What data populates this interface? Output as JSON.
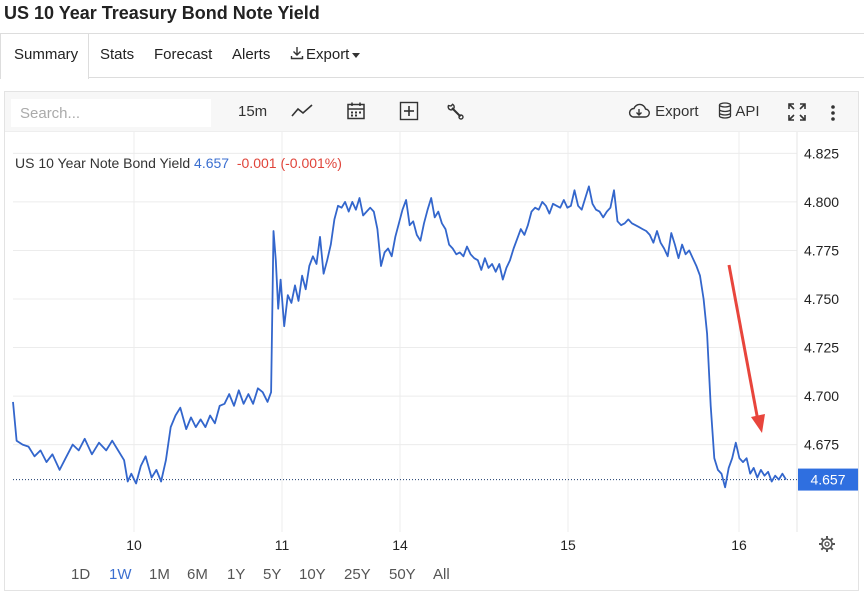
{
  "title": "US 10 Year Treasury Bond Note Yield",
  "tabs": [
    {
      "label": "Summary",
      "active": true
    },
    {
      "label": "Stats",
      "active": false
    },
    {
      "label": "Forecast",
      "active": false
    },
    {
      "label": "Alerts",
      "active": false
    },
    {
      "label": "Export",
      "active": false
    }
  ],
  "toolbar": {
    "search_placeholder": "Search...",
    "interval": "15m",
    "export_label": "Export",
    "api_label": "API"
  },
  "legend": {
    "name": "US 10 Year Note Bond Yield",
    "value": "4.657",
    "change": "-0.001 (-0.001%)"
  },
  "last_value_label": "4.657",
  "range_buttons": [
    {
      "label": "1D",
      "active": false
    },
    {
      "label": "1W",
      "active": true
    },
    {
      "label": "1M",
      "active": false
    },
    {
      "label": "6M",
      "active": false
    },
    {
      "label": "1Y",
      "active": false
    },
    {
      "label": "5Y",
      "active": false
    },
    {
      "label": "10Y",
      "active": false
    },
    {
      "label": "25Y",
      "active": false
    },
    {
      "label": "50Y",
      "active": false
    },
    {
      "label": "All",
      "active": false
    }
  ],
  "colors": {
    "line": "#3366cc",
    "up": "#3b6fd0",
    "down": "#e0443a",
    "arrow": "#e8453c",
    "last_label_bg": "#2f6fe0"
  },
  "chart_data": {
    "type": "line",
    "series": [
      {
        "name": "US 10 Year Note Bond Yield",
        "x_ticks": [
          "10",
          "11",
          "14",
          "15",
          "16"
        ],
        "points": [
          [
            0.0,
            4.697
          ],
          [
            0.3,
            4.677
          ],
          [
            0.8,
            4.675
          ],
          [
            1.3,
            4.674
          ],
          [
            1.8,
            4.669
          ],
          [
            2.3,
            4.672
          ],
          [
            2.8,
            4.666
          ],
          [
            3.3,
            4.67
          ],
          [
            3.9,
            4.662
          ],
          [
            4.4,
            4.668
          ],
          [
            5.0,
            4.675
          ],
          [
            5.5,
            4.672
          ],
          [
            6.0,
            4.678
          ],
          [
            6.6,
            4.67
          ],
          [
            7.2,
            4.676
          ],
          [
            7.8,
            4.672
          ],
          [
            8.3,
            4.677
          ],
          [
            8.8,
            4.672
          ],
          [
            9.3,
            4.667
          ],
          [
            9.6,
            4.656
          ],
          [
            9.9,
            4.66
          ],
          [
            10.3,
            4.655
          ],
          [
            10.7,
            4.664
          ],
          [
            11.1,
            4.669
          ],
          [
            11.6,
            4.658
          ],
          [
            12.0,
            4.662
          ],
          [
            12.4,
            4.656
          ],
          [
            12.8,
            4.667
          ],
          [
            13.2,
            4.684
          ],
          [
            13.6,
            4.69
          ],
          [
            14.0,
            4.694
          ],
          [
            14.5,
            4.683
          ],
          [
            14.9,
            4.689
          ],
          [
            15.3,
            4.684
          ],
          [
            15.7,
            4.688
          ],
          [
            16.1,
            4.684
          ],
          [
            16.5,
            4.69
          ],
          [
            16.9,
            4.686
          ],
          [
            17.3,
            4.695
          ],
          [
            17.7,
            4.696
          ],
          [
            18.1,
            4.701
          ],
          [
            18.5,
            4.695
          ],
          [
            18.9,
            4.703
          ],
          [
            19.3,
            4.696
          ],
          [
            19.7,
            4.701
          ],
          [
            20.1,
            4.696
          ],
          [
            20.5,
            4.704
          ],
          [
            20.9,
            4.702
          ],
          [
            21.3,
            4.697
          ],
          [
            21.6,
            4.702
          ],
          [
            21.8,
            4.785
          ],
          [
            22.0,
            4.77
          ],
          [
            22.2,
            4.745
          ],
          [
            22.4,
            4.76
          ],
          [
            22.7,
            4.736
          ],
          [
            23.0,
            4.752
          ],
          [
            23.3,
            4.748
          ],
          [
            23.6,
            4.757
          ],
          [
            23.9,
            4.749
          ],
          [
            24.2,
            4.762
          ],
          [
            24.5,
            4.755
          ],
          [
            24.8,
            4.767
          ],
          [
            25.1,
            4.772
          ],
          [
            25.4,
            4.768
          ],
          [
            25.7,
            4.782
          ],
          [
            26.0,
            4.763
          ],
          [
            26.3,
            4.77
          ],
          [
            26.6,
            4.778
          ],
          [
            26.9,
            4.791
          ],
          [
            27.2,
            4.798
          ],
          [
            27.5,
            4.797
          ],
          [
            27.8,
            4.8
          ],
          [
            28.1,
            4.795
          ],
          [
            28.4,
            4.8
          ],
          [
            28.7,
            4.796
          ],
          [
            29.0,
            4.802
          ],
          [
            29.3,
            4.793
          ],
          [
            29.6,
            4.795
          ],
          [
            29.9,
            4.797
          ],
          [
            30.2,
            4.795
          ],
          [
            30.5,
            4.786
          ],
          [
            30.8,
            4.767
          ],
          [
            31.1,
            4.774
          ],
          [
            31.4,
            4.776
          ],
          [
            31.7,
            4.772
          ],
          [
            32.0,
            4.782
          ],
          [
            32.3,
            4.789
          ],
          [
            32.6,
            4.796
          ],
          [
            32.9,
            4.801
          ],
          [
            33.2,
            4.788
          ],
          [
            33.5,
            4.79
          ],
          [
            33.8,
            4.783
          ],
          [
            34.1,
            4.78
          ],
          [
            34.4,
            4.789
          ],
          [
            34.7,
            4.796
          ],
          [
            35.0,
            4.802
          ],
          [
            35.3,
            4.792
          ],
          [
            35.6,
            4.795
          ],
          [
            35.9,
            4.789
          ],
          [
            36.2,
            4.786
          ],
          [
            36.5,
            4.778
          ],
          [
            36.8,
            4.776
          ],
          [
            37.1,
            4.773
          ],
          [
            37.4,
            4.774
          ],
          [
            37.7,
            4.772
          ],
          [
            38.0,
            4.777
          ],
          [
            38.3,
            4.773
          ],
          [
            38.6,
            4.771
          ],
          [
            38.9,
            4.77
          ],
          [
            39.2,
            4.765
          ],
          [
            39.5,
            4.771
          ],
          [
            39.8,
            4.766
          ],
          [
            40.1,
            4.768
          ],
          [
            40.4,
            4.764
          ],
          [
            40.7,
            4.768
          ],
          [
            41.0,
            4.76
          ],
          [
            41.3,
            4.766
          ],
          [
            41.6,
            4.77
          ],
          [
            41.9,
            4.776
          ],
          [
            42.2,
            4.781
          ],
          [
            42.5,
            4.786
          ],
          [
            42.8,
            4.783
          ],
          [
            43.1,
            4.788
          ],
          [
            43.4,
            4.795
          ],
          [
            43.7,
            4.797
          ],
          [
            44.0,
            4.796
          ],
          [
            44.3,
            4.8
          ],
          [
            44.6,
            4.798
          ],
          [
            44.9,
            4.794
          ],
          [
            45.2,
            4.799
          ],
          [
            45.5,
            4.798
          ],
          [
            45.8,
            4.797
          ],
          [
            46.1,
            4.801
          ],
          [
            46.4,
            4.797
          ],
          [
            46.7,
            4.798
          ],
          [
            47.0,
            4.806
          ],
          [
            47.3,
            4.798
          ],
          [
            47.6,
            4.796
          ],
          [
            47.9,
            4.802
          ],
          [
            48.2,
            4.808
          ],
          [
            48.5,
            4.799
          ],
          [
            48.8,
            4.796
          ],
          [
            49.1,
            4.795
          ],
          [
            49.4,
            4.792
          ],
          [
            49.7,
            4.795
          ],
          [
            50.0,
            4.797
          ],
          [
            50.3,
            4.806
          ],
          [
            50.6,
            4.79
          ],
          [
            50.9,
            4.788
          ],
          [
            51.2,
            4.789
          ],
          [
            51.5,
            4.791
          ],
          [
            51.8,
            4.789
          ],
          [
            52.1,
            4.788
          ],
          [
            52.4,
            4.787
          ],
          [
            52.7,
            4.786
          ],
          [
            53.0,
            4.785
          ],
          [
            53.3,
            4.783
          ],
          [
            53.6,
            4.779
          ],
          [
            53.9,
            4.785
          ],
          [
            54.2,
            4.779
          ],
          [
            54.5,
            4.776
          ],
          [
            54.8,
            4.772
          ],
          [
            55.1,
            4.784
          ],
          [
            55.4,
            4.778
          ],
          [
            55.7,
            4.771
          ],
          [
            56.0,
            4.778
          ],
          [
            56.3,
            4.773
          ],
          [
            56.6,
            4.775
          ],
          [
            56.9,
            4.771
          ],
          [
            57.2,
            4.767
          ],
          [
            57.5,
            4.762
          ],
          [
            57.8,
            4.75
          ],
          [
            58.1,
            4.732
          ],
          [
            58.4,
            4.695
          ],
          [
            58.7,
            4.668
          ],
          [
            59.0,
            4.662
          ],
          [
            59.3,
            4.66
          ],
          [
            59.6,
            4.653
          ],
          [
            59.9,
            4.663
          ],
          [
            60.2,
            4.668
          ],
          [
            60.5,
            4.676
          ],
          [
            60.8,
            4.668
          ],
          [
            61.1,
            4.666
          ],
          [
            61.4,
            4.668
          ],
          [
            61.7,
            4.66
          ],
          [
            62.0,
            4.663
          ],
          [
            62.3,
            4.658
          ],
          [
            62.6,
            4.662
          ],
          [
            62.9,
            4.659
          ],
          [
            63.2,
            4.661
          ],
          [
            63.5,
            4.656
          ],
          [
            63.8,
            4.659
          ],
          [
            64.1,
            4.657
          ],
          [
            64.4,
            4.66
          ],
          [
            64.7,
            4.657
          ]
        ]
      }
    ],
    "y_ticks": [
      "4.825",
      "4.800",
      "4.775",
      "4.750",
      "4.725",
      "4.700",
      "4.675"
    ],
    "ylim": [
      4.63,
      4.836
    ],
    "annotation": "red arrow pointing down toward the end of the series",
    "grid": "horizontal and vertical light gridlines"
  }
}
